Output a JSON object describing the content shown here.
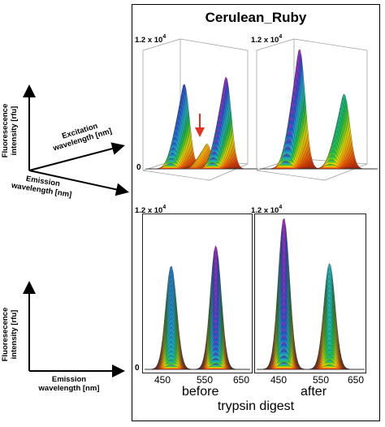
{
  "figure": {
    "title": "Cerulean_Ruby",
    "scale_label_base": "1.2 x 10",
    "scale_label_exp": "4",
    "zero_label": "0",
    "conditions": [
      "before",
      "after"
    ],
    "xlabel_bottom": "trypsin digest"
  },
  "axes_3d": {
    "y_label_line1": "Fluoresecence",
    "y_label_line2": "intensity [rfu]",
    "excitation_line1": "Excitation",
    "excitation_line2": "wavelength [nm]",
    "emission_line1": "Emission",
    "emission_line2": "wavelength [nm]"
  },
  "axes_2d": {
    "y_label_line1": "Fluoresecence",
    "y_label_line2": "intensity [rfu]",
    "emission_line1": "Emission",
    "emission_line2": "wavelength [nm]"
  },
  "colors": {
    "arrow": "#e63020",
    "gradient": [
      "#c81800",
      "#ff5a00",
      "#ffa800",
      "#e8e000",
      "#5ad21e",
      "#0fb45a",
      "#21b4b4",
      "#1e8cd2",
      "#2846c8",
      "#c81ebe"
    ]
  },
  "chart_data": {
    "type": "area",
    "title": "Cerulean_Ruby",
    "xlabel": "trypsin digest",
    "ylabel": "Fluoresecence intensity [rfu]",
    "x_ticks": [
      450,
      550,
      650
    ],
    "xlim": [
      410,
      680
    ],
    "ylim": [
      0,
      12000
    ],
    "panels": [
      {
        "view": "3D",
        "condition": "before",
        "peaks": [
          {
            "x": 478,
            "y": 8500
          },
          {
            "x": 540,
            "y": 2500
          },
          {
            "x": 592,
            "y": 9200
          }
        ]
      },
      {
        "view": "3D",
        "condition": "after",
        "peaks": [
          {
            "x": 478,
            "y": 12000
          },
          {
            "x": 592,
            "y": 7500
          }
        ]
      },
      {
        "view": "2D",
        "condition": "before",
        "peaks": [
          {
            "x": 478,
            "y": 8200
          },
          {
            "x": 592,
            "y": 9800
          }
        ]
      },
      {
        "view": "2D",
        "condition": "after",
        "peaks": [
          {
            "x": 478,
            "y": 12000
          },
          {
            "x": 592,
            "y": 8400
          }
        ]
      }
    ]
  }
}
